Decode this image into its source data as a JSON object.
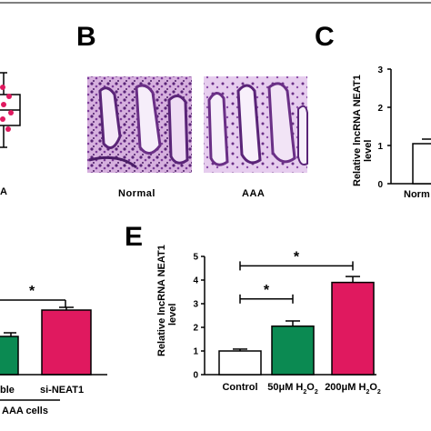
{
  "panels": {
    "B": "B",
    "C": "C",
    "E": "E"
  },
  "panel_a_fragment": {
    "label": "A"
  },
  "panel_b": {
    "captions": [
      "Normal",
      "AAA"
    ],
    "colors": {
      "tissue_dark": "#6a2f86",
      "tissue_light": "#d9b6e2",
      "lumen": "#f6eefa"
    }
  },
  "panel_c_fragment": {
    "ylabel": "Relative lncRNA NEAT1 level",
    "ticks": [
      "0",
      "1",
      "2",
      "3"
    ],
    "category": "Norm",
    "value": 1.0
  },
  "panel_d_fragment": {
    "labels": [
      "ble",
      "si-NEAT1"
    ],
    "footer": "AAA cells",
    "star": "*",
    "colors": {
      "green": "#0b8a52",
      "pink": "#e0195f"
    }
  },
  "chart_data": {
    "type": "bar",
    "categories": [
      "Control",
      "50μM H2O2",
      "200μM H2O2"
    ],
    "category_parts": [
      {
        "main": "Control"
      },
      {
        "main": "50μM H",
        "sub1": "2",
        "mid": "O",
        "sub2": "2"
      },
      {
        "main": "200μM H",
        "sub1": "2",
        "mid": "O",
        "sub2": "2"
      }
    ],
    "values": [
      1.0,
      2.05,
      3.9
    ],
    "errors": [
      0.08,
      0.22,
      0.25
    ],
    "colors": [
      "#ffffff",
      "#0b8a52",
      "#e0195f"
    ],
    "ylabel": "Relative lncRNA NEAT1 level",
    "ylim": [
      0,
      5
    ],
    "yticks": [
      "0",
      "1",
      "2",
      "3",
      "4",
      "5"
    ],
    "significance": [
      {
        "from": 0,
        "to": 1,
        "y": 3.2,
        "label": "*"
      },
      {
        "from": 0,
        "to": 2,
        "y": 4.6,
        "label": "*"
      }
    ]
  }
}
